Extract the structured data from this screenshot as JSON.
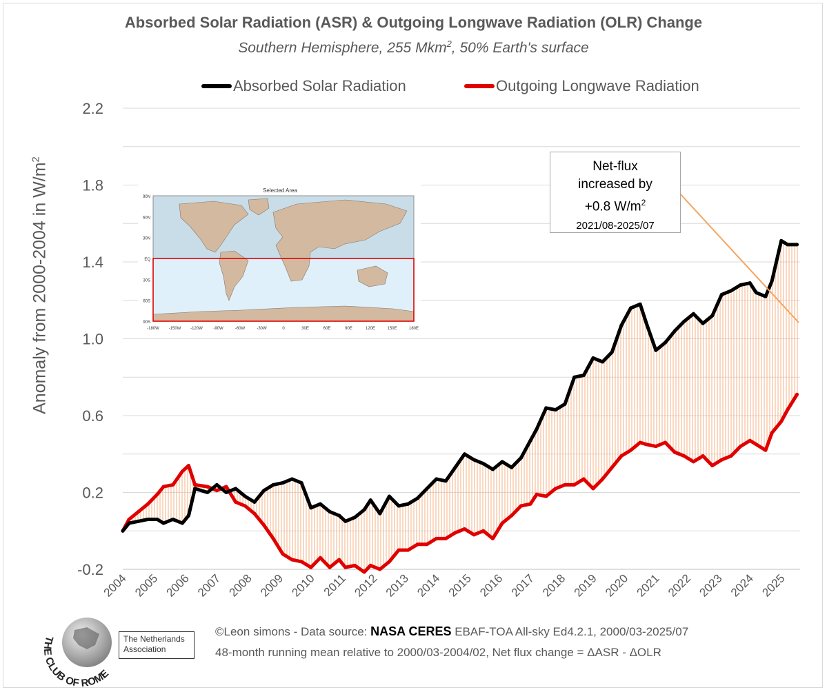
{
  "title": "Absorbed Solar Radiation (ASR) & Outgoing Longwave Radiation (OLR) Change",
  "subtitle": {
    "prefix": "Southern Hemisphere, 255 Mkm",
    "sup": "2",
    "suffix": ", 50% Earth's surface"
  },
  "legend": {
    "asr": "Absorbed Solar Radiation",
    "olr": "Outgoing Longwave Radiation"
  },
  "colors": {
    "asr": "#000000",
    "olr": "#e00000",
    "fill": "#f4b183",
    "annotation_line": "#f4a460",
    "grid": "#d9d9d9",
    "text": "#595959"
  },
  "y_axis_title": {
    "prefix": "Anomaly from 2000-2004 in W/m",
    "sup": "2"
  },
  "annotation": {
    "line1": "Net-flux",
    "line2": "increased by",
    "line3_prefix": "+0.8 W/m",
    "line3_sup": "2",
    "line4": "2021/08-2025/07"
  },
  "footer": {
    "line1_prefix": "©Leon simons - Data source: ",
    "line1_bold": "NASA CERES",
    "line1_suffix": " EBAF-TOA All-sky Ed4.2.1, 2000/03-2025/07",
    "line2": "48-month running mean relative to 2000/03-2004/02, Net flux change = ΔASR - ΔOLR"
  },
  "logo": {
    "arc_text": "THE CLUB OF ROME",
    "association_line1": "The Netherlands",
    "association_line2": "Association"
  },
  "inset_map": {
    "title": "Selected Area",
    "lat_labels": [
      "90N",
      "60N",
      "30N",
      "EQ",
      "30S",
      "60S",
      "90S"
    ],
    "lon_labels": [
      "-180W",
      "-150W",
      "-120W",
      "-90W",
      "-60W",
      "-30W",
      "0",
      "30E",
      "60E",
      "90E",
      "120E",
      "150E",
      "180E"
    ]
  },
  "chart_data": {
    "type": "line",
    "title": "Absorbed Solar Radiation (ASR) & Outgoing Longwave Radiation (OLR) Change",
    "ylabel": "Anomaly from 2000-2004 in W/m2",
    "xlabel": "",
    "ylim": [
      -0.2,
      2.2
    ],
    "xlim": [
      2004.0,
      2025.6
    ],
    "y_ticks": [
      -0.2,
      0.2,
      0.6,
      1.0,
      1.4,
      1.8,
      2.2
    ],
    "x_ticks": [
      "2004",
      "2005",
      "2006",
      "2007",
      "2008",
      "2009",
      "2010",
      "2011",
      "2012",
      "2013",
      "2014",
      "2015",
      "2016",
      "2017",
      "2018",
      "2019",
      "2020",
      "2021",
      "2022",
      "2023",
      "2024",
      "2025"
    ],
    "grid": true,
    "legend_position": "top",
    "series": [
      {
        "name": "Absorbed Solar Radiation",
        "x": [
          2004.0,
          2004.2,
          2004.5,
          2004.8,
          2005.1,
          2005.3,
          2005.6,
          2005.9,
          2006.1,
          2006.3,
          2006.7,
          2007.0,
          2007.3,
          2007.6,
          2007.9,
          2008.2,
          2008.5,
          2008.8,
          2009.1,
          2009.4,
          2009.7,
          2010.0,
          2010.3,
          2010.6,
          2010.9,
          2011.1,
          2011.4,
          2011.7,
          2011.9,
          2012.2,
          2012.5,
          2012.8,
          2013.1,
          2013.4,
          2013.7,
          2014.0,
          2014.3,
          2014.6,
          2014.9,
          2015.2,
          2015.5,
          2015.8,
          2016.1,
          2016.4,
          2016.7,
          2017.0,
          2017.2,
          2017.5,
          2017.8,
          2018.1,
          2018.4,
          2018.7,
          2019.0,
          2019.3,
          2019.6,
          2019.9,
          2020.2,
          2020.5,
          2020.7,
          2021.0,
          2021.3,
          2021.6,
          2021.9,
          2022.2,
          2022.5,
          2022.8,
          2023.1,
          2023.4,
          2023.7,
          2024.0,
          2024.2,
          2024.5,
          2024.7,
          2025.0,
          2025.2,
          2025.5
        ],
        "values": [
          0.0,
          0.04,
          0.05,
          0.06,
          0.06,
          0.04,
          0.06,
          0.04,
          0.08,
          0.22,
          0.2,
          0.24,
          0.2,
          0.22,
          0.18,
          0.15,
          0.21,
          0.24,
          0.25,
          0.27,
          0.25,
          0.12,
          0.14,
          0.1,
          0.08,
          0.05,
          0.07,
          0.11,
          0.16,
          0.09,
          0.18,
          0.13,
          0.14,
          0.17,
          0.22,
          0.27,
          0.26,
          0.33,
          0.4,
          0.37,
          0.35,
          0.32,
          0.36,
          0.33,
          0.38,
          0.47,
          0.53,
          0.64,
          0.63,
          0.66,
          0.8,
          0.81,
          0.9,
          0.88,
          0.93,
          1.07,
          1.16,
          1.18,
          1.08,
          0.94,
          0.98,
          1.04,
          1.09,
          1.13,
          1.08,
          1.12,
          1.23,
          1.25,
          1.28,
          1.29,
          1.24,
          1.22,
          1.3,
          1.51,
          1.49,
          1.49
        ]
      },
      {
        "name": "Outgoing Longwave Radiation",
        "x": [
          2004.0,
          2004.2,
          2004.5,
          2004.8,
          2005.1,
          2005.3,
          2005.6,
          2005.9,
          2006.1,
          2006.3,
          2006.7,
          2007.0,
          2007.3,
          2007.6,
          2007.9,
          2008.2,
          2008.5,
          2008.8,
          2009.1,
          2009.4,
          2009.7,
          2010.0,
          2010.3,
          2010.6,
          2010.9,
          2011.1,
          2011.4,
          2011.7,
          2011.9,
          2012.2,
          2012.5,
          2012.8,
          2013.1,
          2013.4,
          2013.7,
          2014.0,
          2014.3,
          2014.6,
          2014.9,
          2015.2,
          2015.5,
          2015.8,
          2016.1,
          2016.4,
          2016.7,
          2017.0,
          2017.2,
          2017.5,
          2017.8,
          2018.1,
          2018.4,
          2018.7,
          2019.0,
          2019.3,
          2019.6,
          2019.9,
          2020.2,
          2020.5,
          2020.7,
          2021.0,
          2021.3,
          2021.6,
          2021.9,
          2022.2,
          2022.5,
          2022.8,
          2023.1,
          2023.4,
          2023.7,
          2024.0,
          2024.2,
          2024.5,
          2024.7,
          2025.0,
          2025.2,
          2025.5
        ],
        "values": [
          0.0,
          0.06,
          0.1,
          0.14,
          0.19,
          0.23,
          0.24,
          0.31,
          0.34,
          0.24,
          0.23,
          0.21,
          0.23,
          0.15,
          0.13,
          0.09,
          0.03,
          -0.04,
          -0.12,
          -0.15,
          -0.16,
          -0.19,
          -0.14,
          -0.19,
          -0.15,
          -0.19,
          -0.18,
          -0.22,
          -0.18,
          -0.2,
          -0.16,
          -0.1,
          -0.1,
          -0.07,
          -0.07,
          -0.04,
          -0.04,
          -0.01,
          0.01,
          -0.02,
          0.0,
          -0.04,
          0.04,
          0.08,
          0.13,
          0.14,
          0.19,
          0.18,
          0.22,
          0.24,
          0.24,
          0.27,
          0.22,
          0.27,
          0.33,
          0.39,
          0.42,
          0.46,
          0.45,
          0.44,
          0.46,
          0.41,
          0.39,
          0.36,
          0.39,
          0.34,
          0.37,
          0.39,
          0.44,
          0.47,
          0.45,
          0.42,
          0.51,
          0.57,
          0.63,
          0.71
        ]
      }
    ],
    "annotation": {
      "text": "Net-flux increased by +0.8 W/m2",
      "period": "2021/08-2025/07"
    }
  }
}
